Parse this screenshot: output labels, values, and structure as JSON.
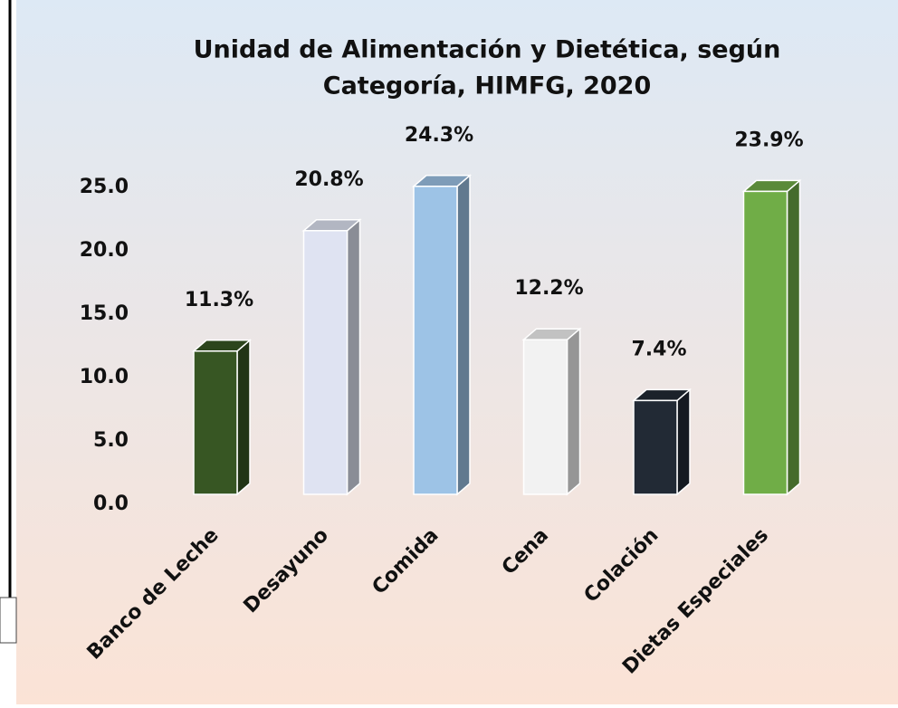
{
  "chart_data": {
    "type": "bar3d",
    "title": [
      "Unidad de Alimentación y Dietética, según",
      "Categoría, HIMFG, 2020"
    ],
    "categories": [
      "Banco de Leche",
      "Desayuno",
      "Comida",
      "Cena",
      "Colación",
      "Dietas Especiales"
    ],
    "values": [
      11.3,
      20.8,
      24.3,
      12.2,
      7.4,
      23.9
    ],
    "value_labels": [
      "11.3%",
      "20.8%",
      "24.3%",
      "12.2%",
      "7.4%",
      "23.9%"
    ],
    "colors": [
      "#375623",
      "#dfe3f2",
      "#9dc3e6",
      "#f2f2f2",
      "#222a35",
      "#70ad47"
    ],
    "ylim": [
      0,
      25
    ],
    "yticks": [
      {
        "value": 0,
        "label": "0.0"
      },
      {
        "value": 5,
        "label": "5.0"
      },
      {
        "value": 10,
        "label": "10.0"
      },
      {
        "value": 15,
        "label": "15.0"
      },
      {
        "value": 20,
        "label": "20.0"
      },
      {
        "value": 25,
        "label": "25.0"
      }
    ],
    "grid": false
  }
}
